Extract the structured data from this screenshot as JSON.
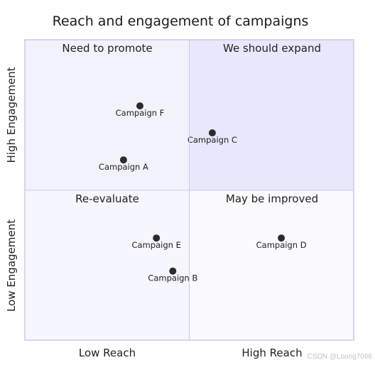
{
  "chart_data": {
    "type": "scatter",
    "title": "Reach and engagement of campaigns",
    "x_axis": {
      "low": "Low Reach",
      "high": "High Reach",
      "range": [
        0,
        1
      ]
    },
    "y_axis": {
      "low": "Low Engagement",
      "high": "High Engagement",
      "range": [
        0,
        1
      ]
    },
    "quadrants": {
      "top_left": "Need to promote",
      "top_right": "We should expand",
      "bottom_left": "Re-evaluate",
      "bottom_right": "May be improved"
    },
    "points": [
      {
        "label": "Campaign A",
        "x": 0.3,
        "y": 0.6
      },
      {
        "label": "Campaign B",
        "x": 0.45,
        "y": 0.23
      },
      {
        "label": "Campaign C",
        "x": 0.57,
        "y": 0.69
      },
      {
        "label": "Campaign D",
        "x": 0.78,
        "y": 0.34
      },
      {
        "label": "Campaign E",
        "x": 0.4,
        "y": 0.34
      },
      {
        "label": "Campaign F",
        "x": 0.35,
        "y": 0.78
      }
    ],
    "colors": {
      "top_left_fill": "#f2f2fd",
      "top_right_fill": "#e8e8fd",
      "bottom_left_fill": "#f6f6fe",
      "bottom_right_fill": "#fafaff",
      "border": "#c8c8ea",
      "point": "#2b2b2b"
    }
  },
  "watermark": "CSDN @Loong7066"
}
